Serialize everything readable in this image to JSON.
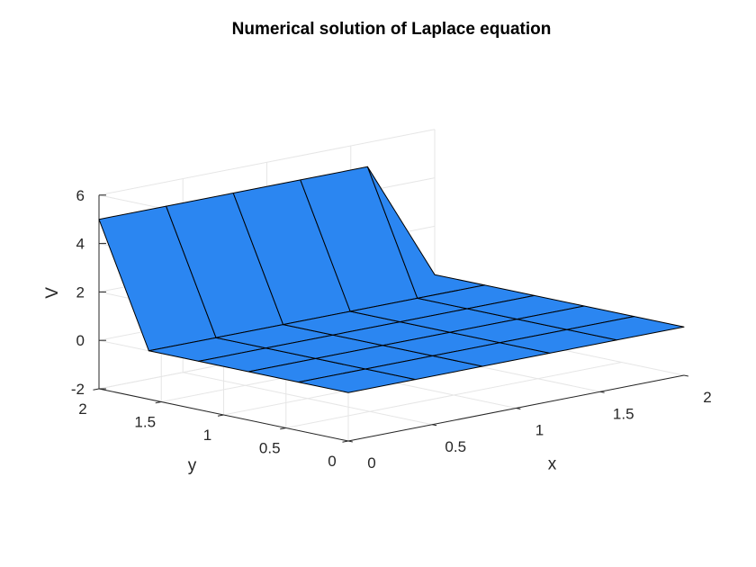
{
  "chart_data": {
    "type": "surface",
    "title": "Numerical solution of Laplace equation",
    "xlabel": "x",
    "ylabel": "y",
    "zlabel": "V",
    "x": [
      0,
      0.4,
      0.8,
      1.2,
      1.6,
      2.0
    ],
    "y": [
      0,
      0.4,
      0.8,
      1.2,
      1.6,
      2.0
    ],
    "z": [
      [
        0,
        0,
        0,
        0,
        0,
        0
      ],
      [
        0,
        0,
        0,
        0,
        0,
        0
      ],
      [
        0,
        0,
        0,
        0,
        0,
        0
      ],
      [
        0,
        0,
        0,
        0,
        0,
        0
      ],
      [
        0,
        0,
        0,
        0,
        0,
        0
      ],
      [
        5,
        5,
        5,
        5,
        5,
        0
      ]
    ],
    "xlim": [
      0,
      2
    ],
    "ylim": [
      0,
      2
    ],
    "zlim": [
      -2,
      6
    ],
    "xticks": [
      "0",
      "0.5",
      "1",
      "1.5",
      "2"
    ],
    "yticks": [
      "0",
      "0.5",
      "1",
      "1.5",
      "2"
    ],
    "zticks": [
      "-2",
      "0",
      "2",
      "4",
      "6"
    ],
    "face_color": "#2b86f1",
    "grid": true
  }
}
